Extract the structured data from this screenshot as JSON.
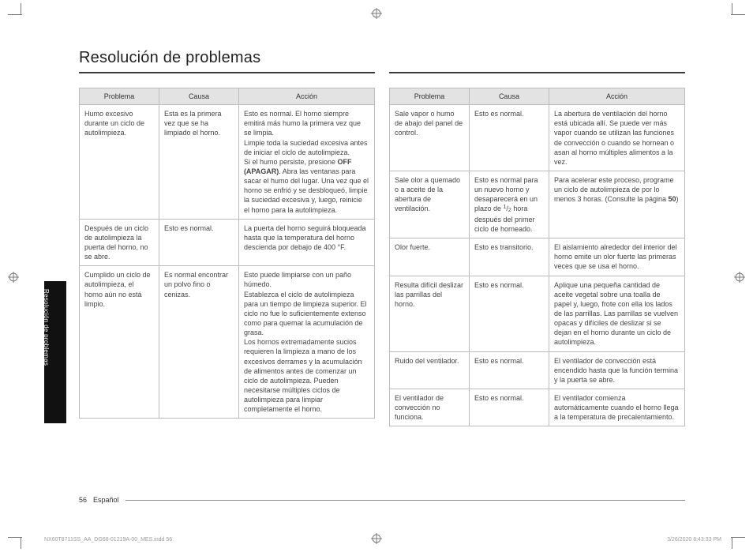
{
  "heading": "Resolución de problemas",
  "tab_label": "Resolución de problemas",
  "columns": {
    "problema": "Problema",
    "causa": "Causa",
    "accion": "Acción"
  },
  "colors": {
    "header_bg": "#e3e3e3",
    "border": "#bcbcbc",
    "rule": "#3a3a3a",
    "tab_bg": "#111111",
    "text": "#333333"
  },
  "left_rows": [
    {
      "problema": "Humo excesivo durante un ciclo de autolimpieza.",
      "causa": "Esta es la primera vez que se ha limpiado el horno.",
      "accion_pre": "Esto es normal. El horno siempre emitirá más humo la primera vez que se limpia.\nLimpie toda la suciedad excesiva antes de iniciar el ciclo de autolimpieza.\nSi el humo persiste, presione ",
      "accion_bold": "OFF (APAGAR)",
      "accion_post": ". Abra las ventanas para sacar el humo del lugar. Una vez que el horno se enfrió y se desbloqueó, limpie la suciedad excesiva y, luego, reinicie el horno para la autolimpieza."
    },
    {
      "problema": "Después de un ciclo de autolimpieza la puerta del horno, no se abre.",
      "causa": "Esto es normal.",
      "accion": "La puerta del horno seguirá bloqueada hasta que la temperatura del horno descienda por debajo de 400 °F."
    },
    {
      "problema": "Cumplido un ciclo de autolimpieza, el horno aún no está limpio.",
      "causa": "Es normal encontrar un polvo fino o cenizas.",
      "accion": "Esto puede limpiarse con un paño húmedo.\nEstablezca el ciclo de autolimpieza para un tiempo de limpieza superior. El ciclo no fue lo suficientemente extenso como para quemar la acumulación de grasa.\nLos hornos extremadamente sucios requieren la limpieza a mano de los excesivos derrames y la acumulación de alimentos antes de comenzar un ciclo de autolimpieza. Pueden necesitarse múltiples ciclos de autolimpieza para limpiar completamente el horno."
    }
  ],
  "right_rows": [
    {
      "problema": "Sale vapor o humo de abajo del panel de control.",
      "causa": "Esto es normal.",
      "accion": "La abertura de ventilación del horno está ubicada allí. Se puede ver más vapor cuando se utilizan las funciones de convección o cuando se hornean o asan al horno múltiples alimentos a la vez."
    },
    {
      "problema": "Sale olor a quemado o a aceite de la abertura de ventilación.",
      "causa_pre": "Esto es normal para un nuevo horno y desaparecerá en un plazo de ",
      "causa_frac_n": "1",
      "causa_frac_d": "2",
      "causa_post": " hora después del primer ciclo de horneado.",
      "accion_pre": "Para acelerar este proceso, programe un ciclo de autolimpieza de por lo menos 3 horas. (Consulte la página ",
      "accion_bold": "50",
      "accion_post": ")"
    },
    {
      "problema": "Olor fuerte.",
      "causa": "Esto es transitorio.",
      "accion": "El aislamiento alrededor del interior del horno emite un olor fuerte las primeras veces que se usa el horno."
    },
    {
      "problema": "Resulta difícil deslizar las parrillas del horno.",
      "causa": "Esto es normal.",
      "accion": "Aplique una pequeña cantidad de aceite vegetal sobre una toalla de papel y, luego, frote con ella los lados de las parrillas. Las parrillas se vuelven opacas y difíciles de deslizar si se dejan en el horno durante un ciclo de autolimpieza."
    },
    {
      "problema": "Ruido del ventilador.",
      "causa": "Esto es normal.",
      "accion": "El ventilador de convección está encendido hasta que la función termina y la puerta se abre."
    },
    {
      "problema": "El ventilador de convección no funciona.",
      "causa": "Esto es normal.",
      "accion": "El ventilador comienza automáticamente cuando el horno llega a la temperatura de precalentamiento."
    }
  ],
  "footer": {
    "page_number": "56",
    "language": "Español"
  },
  "imprint": {
    "left": "NX60T8711SS_AA_DG68-01219A-00_MES.indd   56",
    "right": "3/26/2020   8:43:33 PM"
  }
}
